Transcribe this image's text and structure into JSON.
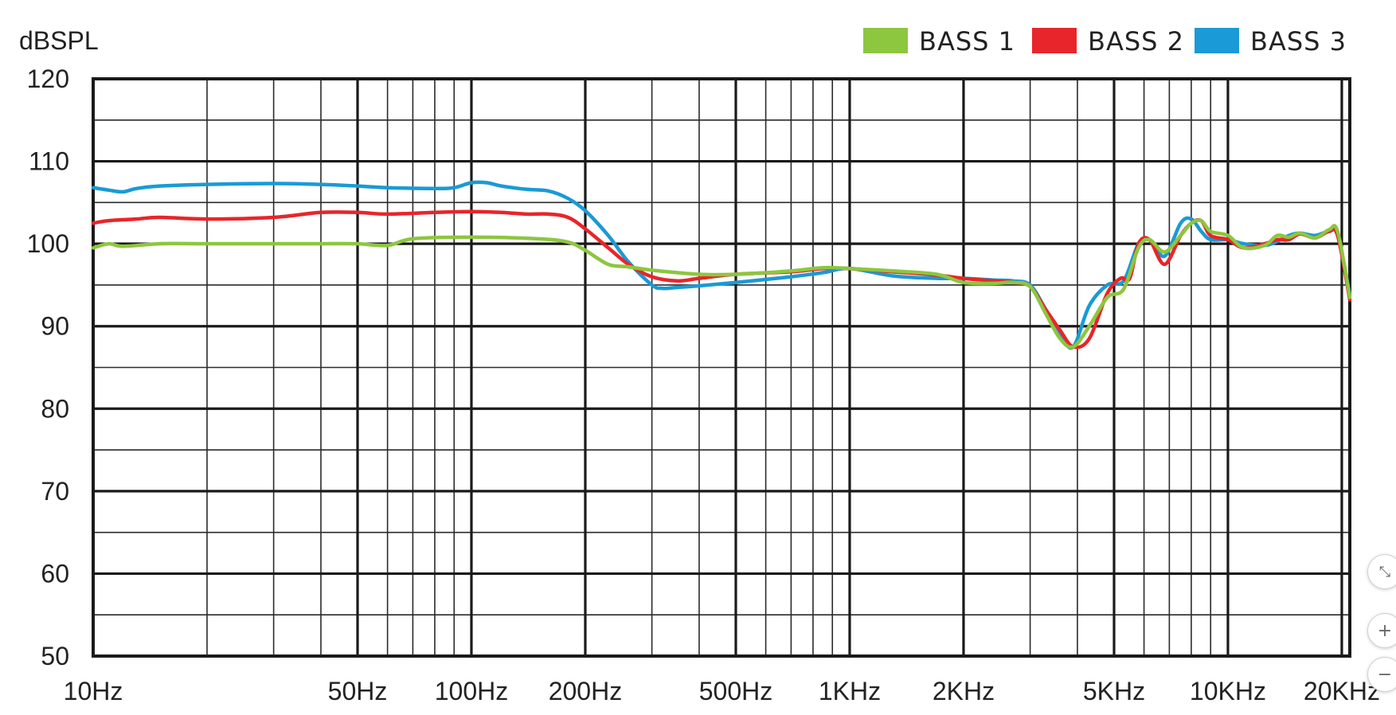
{
  "chart_data": {
    "type": "line",
    "ylabel": "dBSPL",
    "xlabel": "",
    "x_scale": "log",
    "xlim": [
      10,
      21000
    ],
    "ylim": [
      50,
      120
    ],
    "y_ticks": [
      50,
      60,
      70,
      80,
      90,
      100,
      110,
      120
    ],
    "x_ticks": [
      {
        "value": 10,
        "label": "10Hz"
      },
      {
        "value": 50,
        "label": "50Hz"
      },
      {
        "value": 100,
        "label": "100Hz"
      },
      {
        "value": 200,
        "label": "200Hz"
      },
      {
        "value": 500,
        "label": "500Hz"
      },
      {
        "value": 1000,
        "label": "1KHz"
      },
      {
        "value": 2000,
        "label": "2KHz"
      },
      {
        "value": 5000,
        "label": "5KHz"
      },
      {
        "value": 10000,
        "label": "10KHz"
      },
      {
        "value": 20000,
        "label": "20KHz"
      }
    ],
    "grid": true,
    "legend_position": "top-right",
    "series": [
      {
        "name": "BASS 1",
        "color": "#8dc63f",
        "points": [
          [
            10,
            99.5
          ],
          [
            11,
            100
          ],
          [
            12,
            99.7
          ],
          [
            15,
            100
          ],
          [
            20,
            100
          ],
          [
            30,
            100
          ],
          [
            40,
            100
          ],
          [
            50,
            100
          ],
          [
            60,
            99.8
          ],
          [
            70,
            100.6
          ],
          [
            100,
            100.8
          ],
          [
            150,
            100.6
          ],
          [
            180,
            100.2
          ],
          [
            200,
            99.2
          ],
          [
            230,
            97.5
          ],
          [
            260,
            97.2
          ],
          [
            300,
            96.8
          ],
          [
            400,
            96.3
          ],
          [
            500,
            96.3
          ],
          [
            700,
            96.7
          ],
          [
            850,
            97.1
          ],
          [
            1000,
            97
          ],
          [
            1300,
            96.7
          ],
          [
            1700,
            96.3
          ],
          [
            2000,
            95.3
          ],
          [
            2400,
            95.2
          ],
          [
            2700,
            95.3
          ],
          [
            3000,
            94.8
          ],
          [
            3300,
            91.5
          ],
          [
            3600,
            88.5
          ],
          [
            3900,
            87.5
          ],
          [
            4300,
            90
          ],
          [
            4800,
            93.5
          ],
          [
            5300,
            94.5
          ],
          [
            5800,
            99.5
          ],
          [
            6200,
            100.5
          ],
          [
            6800,
            99
          ],
          [
            7500,
            101
          ],
          [
            8000,
            102.5
          ],
          [
            8500,
            102.8
          ],
          [
            9000,
            101.5
          ],
          [
            10000,
            101
          ],
          [
            11000,
            99.5
          ],
          [
            12500,
            99.8
          ],
          [
            13500,
            101
          ],
          [
            14500,
            100.8
          ],
          [
            15500,
            101.3
          ],
          [
            17000,
            100.7
          ],
          [
            18500,
            101.7
          ],
          [
            19500,
            101.5
          ],
          [
            21000,
            93.5
          ]
        ]
      },
      {
        "name": "BASS 2",
        "color": "#e8252a",
        "points": [
          [
            10,
            102.5
          ],
          [
            11,
            102.8
          ],
          [
            13,
            103
          ],
          [
            15,
            103.2
          ],
          [
            20,
            103
          ],
          [
            30,
            103.2
          ],
          [
            40,
            103.8
          ],
          [
            50,
            103.8
          ],
          [
            60,
            103.6
          ],
          [
            80,
            103.8
          ],
          [
            100,
            103.9
          ],
          [
            120,
            103.8
          ],
          [
            140,
            103.6
          ],
          [
            160,
            103.6
          ],
          [
            180,
            103.2
          ],
          [
            200,
            101.8
          ],
          [
            230,
            99.5
          ],
          [
            260,
            97.5
          ],
          [
            300,
            96
          ],
          [
            350,
            95.5
          ],
          [
            400,
            95.8
          ],
          [
            500,
            96.3
          ],
          [
            700,
            96.6
          ],
          [
            850,
            97
          ],
          [
            1000,
            97
          ],
          [
            1300,
            96.6
          ],
          [
            1700,
            96.2
          ],
          [
            2000,
            95.8
          ],
          [
            2400,
            95.5
          ],
          [
            2700,
            95.3
          ],
          [
            3000,
            94.8
          ],
          [
            3300,
            92
          ],
          [
            3600,
            89.5
          ],
          [
            3900,
            87.5
          ],
          [
            4300,
            88.5
          ],
          [
            4800,
            94
          ],
          [
            5200,
            95.8
          ],
          [
            5500,
            95.8
          ],
          [
            5800,
            100
          ],
          [
            6200,
            100.5
          ],
          [
            6800,
            97.5
          ],
          [
            7500,
            101
          ],
          [
            8000,
            102.5
          ],
          [
            8500,
            102.8
          ],
          [
            9000,
            101
          ],
          [
            10000,
            100.5
          ],
          [
            11000,
            99.5
          ],
          [
            12500,
            100
          ],
          [
            13500,
            100.5
          ],
          [
            14500,
            100.5
          ],
          [
            15500,
            101.2
          ],
          [
            17000,
            100.7
          ],
          [
            18500,
            101.5
          ],
          [
            19500,
            101
          ],
          [
            21000,
            93.2
          ]
        ]
      },
      {
        "name": "BASS 3",
        "color": "#1a9ad6",
        "points": [
          [
            10,
            106.8
          ],
          [
            11,
            106.5
          ],
          [
            12,
            106.3
          ],
          [
            13,
            106.7
          ],
          [
            15,
            107
          ],
          [
            20,
            107.2
          ],
          [
            30,
            107.3
          ],
          [
            40,
            107.2
          ],
          [
            50,
            107
          ],
          [
            60,
            106.8
          ],
          [
            80,
            106.7
          ],
          [
            90,
            106.8
          ],
          [
            100,
            107.4
          ],
          [
            110,
            107.4
          ],
          [
            120,
            107
          ],
          [
            140,
            106.6
          ],
          [
            160,
            106.4
          ],
          [
            180,
            105.5
          ],
          [
            200,
            104
          ],
          [
            230,
            101
          ],
          [
            260,
            97.8
          ],
          [
            300,
            95
          ],
          [
            320,
            94.6
          ],
          [
            350,
            94.7
          ],
          [
            400,
            94.9
          ],
          [
            500,
            95.3
          ],
          [
            700,
            96
          ],
          [
            850,
            96.5
          ],
          [
            1000,
            97
          ],
          [
            1300,
            96.1
          ],
          [
            1700,
            95.8
          ],
          [
            2000,
            95.8
          ],
          [
            2400,
            95.6
          ],
          [
            2700,
            95.5
          ],
          [
            3000,
            95
          ],
          [
            3300,
            92
          ],
          [
            3600,
            89
          ],
          [
            3900,
            87.5
          ],
          [
            4300,
            92.5
          ],
          [
            4800,
            95
          ],
          [
            5300,
            95.5
          ],
          [
            5800,
            100
          ],
          [
            6200,
            100.5
          ],
          [
            6800,
            98.5
          ],
          [
            7500,
            102.5
          ],
          [
            8000,
            103
          ],
          [
            8500,
            101.5
          ],
          [
            9000,
            100.5
          ],
          [
            10000,
            100.5
          ],
          [
            11000,
            100
          ],
          [
            12500,
            99.8
          ],
          [
            13500,
            100.3
          ],
          [
            14500,
            101
          ],
          [
            15500,
            101.3
          ],
          [
            17000,
            101
          ],
          [
            18500,
            101.5
          ],
          [
            19500,
            101
          ],
          [
            21000,
            93.8
          ]
        ]
      }
    ]
  },
  "zoom_controls": {
    "fit_symbol": "⤡",
    "zoom_in_symbol": "+",
    "zoom_out_symbol": "−"
  }
}
